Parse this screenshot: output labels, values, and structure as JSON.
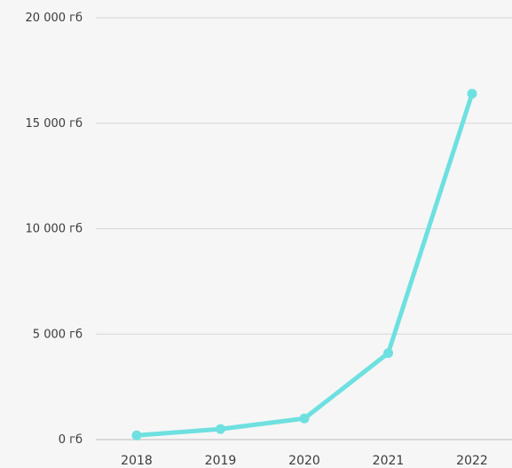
{
  "chart_data": {
    "type": "line",
    "categories": [
      "2018",
      "2019",
      "2020",
      "2021",
      "2022"
    ],
    "series": [
      {
        "values": [
          200,
          500,
          1000,
          4100,
          16400
        ],
        "color": "#6ee0e0"
      }
    ],
    "ylim": [
      0,
      20000
    ],
    "yticks": [
      0,
      5000,
      10000,
      15000,
      20000
    ],
    "ytick_labels": [
      "0 гб",
      "5 000 гб",
      "10 000 гб",
      "15 000 гб",
      "20 000 гб"
    ],
    "grid": true,
    "legend": "none"
  }
}
